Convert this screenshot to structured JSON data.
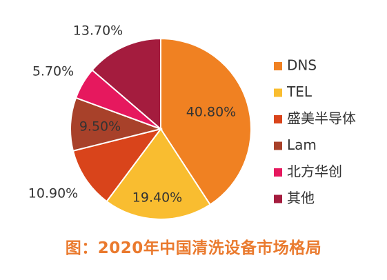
{
  "caption": "图：2020年中国清洗设备市场格局",
  "chart_data": {
    "type": "pie",
    "title": "",
    "categories": [
      "DNS",
      "TEL",
      "盛美半导体",
      "Lam",
      "北方华创",
      "其他"
    ],
    "values": [
      40.8,
      19.4,
      10.9,
      9.5,
      5.7,
      13.7
    ],
    "value_labels": [
      "40.80%",
      "19.40%",
      "10.90%",
      "9.50%",
      "5.70%",
      "13.70%"
    ],
    "colors": [
      "#f08122",
      "#f9bd30",
      "#d9441b",
      "#a8412a",
      "#e6185e",
      "#a41c3e"
    ],
    "legend_position": "right",
    "start_angle": "12 o'clock",
    "direction": "clockwise"
  }
}
